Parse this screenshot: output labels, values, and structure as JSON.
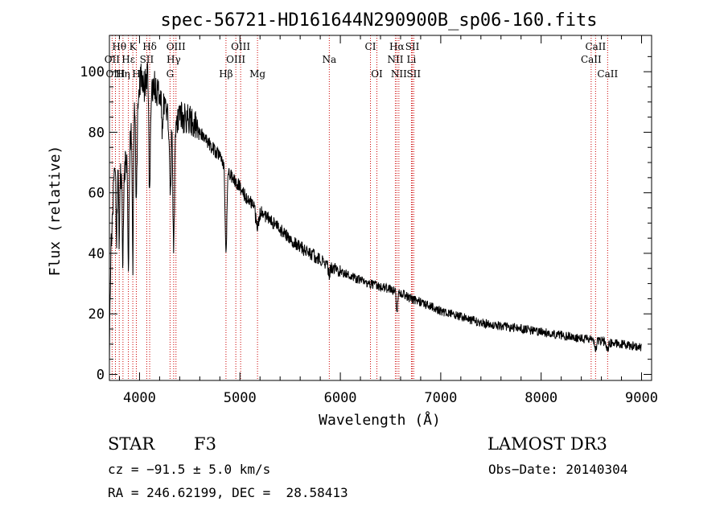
{
  "chart_data": {
    "type": "line",
    "title": "spec-56721-HD161644N290900B_sp06-160.fits",
    "xlabel": "Wavelength (Å)",
    "ylabel": "Flux (relative)",
    "xlim": [
      3700,
      9100
    ],
    "ylim": [
      -2,
      112
    ],
    "xticks": [
      4000,
      5000,
      6000,
      7000,
      8000,
      9000
    ],
    "yticks": [
      0,
      20,
      40,
      60,
      80,
      100
    ],
    "grid": false,
    "spectrum_anchors": [
      [
        3700,
        0
      ],
      [
        3705,
        25
      ],
      [
        3715,
        38
      ],
      [
        3730,
        55
      ],
      [
        3745,
        62
      ],
      [
        3760,
        72
      ],
      [
        3780,
        65
      ],
      [
        3800,
        70
      ],
      [
        3830,
        60
      ],
      [
        3850,
        68
      ],
      [
        3870,
        72
      ],
      [
        3890,
        65
      ],
      [
        3910,
        78
      ],
      [
        3930,
        85
      ],
      [
        3950,
        90
      ],
      [
        3970,
        88
      ],
      [
        4000,
        96
      ],
      [
        4020,
        98
      ],
      [
        4050,
        95
      ],
      [
        4080,
        100
      ],
      [
        4100,
        97
      ],
      [
        4130,
        94
      ],
      [
        4150,
        95
      ],
      [
        4200,
        92
      ],
      [
        4250,
        90
      ],
      [
        4280,
        87
      ],
      [
        4300,
        82
      ],
      [
        4320,
        86
      ],
      [
        4340,
        78
      ],
      [
        4360,
        83
      ],
      [
        4400,
        85
      ],
      [
        4450,
        85
      ],
      [
        4500,
        84
      ],
      [
        4550,
        83
      ],
      [
        4600,
        80
      ],
      [
        4650,
        78
      ],
      [
        4700,
        76
      ],
      [
        4750,
        74
      ],
      [
        4800,
        72
      ],
      [
        4850,
        68
      ],
      [
        4900,
        66
      ],
      [
        4950,
        64
      ],
      [
        5000,
        62
      ],
      [
        5050,
        59
      ],
      [
        5100,
        57
      ],
      [
        5200,
        54
      ],
      [
        5300,
        51
      ],
      [
        5400,
        48
      ],
      [
        5500,
        45
      ],
      [
        5600,
        42
      ],
      [
        5700,
        40
      ],
      [
        5800,
        38
      ],
      [
        5900,
        36
      ],
      [
        6000,
        34
      ],
      [
        6100,
        32.5
      ],
      [
        6200,
        31
      ],
      [
        6300,
        30
      ],
      [
        6400,
        29
      ],
      [
        6500,
        28
      ],
      [
        6600,
        27
      ],
      [
        6700,
        25
      ],
      [
        6800,
        24
      ],
      [
        6900,
        22.5
      ],
      [
        7000,
        21
      ],
      [
        7100,
        20
      ],
      [
        7200,
        19
      ],
      [
        7300,
        18
      ],
      [
        7400,
        17
      ],
      [
        7500,
        16.5
      ],
      [
        7600,
        16
      ],
      [
        7700,
        15.5
      ],
      [
        7800,
        15
      ],
      [
        7900,
        14.5
      ],
      [
        8000,
        14
      ],
      [
        8100,
        13.5
      ],
      [
        8200,
        13
      ],
      [
        8300,
        12.5
      ],
      [
        8400,
        12
      ],
      [
        8500,
        11.5
      ],
      [
        8600,
        11
      ],
      [
        8700,
        10.5
      ],
      [
        8800,
        10
      ],
      [
        8900,
        9.5
      ],
      [
        9000,
        9
      ]
    ],
    "absorption_features": [
      [
        3770,
        22,
        6
      ],
      [
        3798,
        26,
        5
      ],
      [
        3835,
        23,
        6
      ],
      [
        3889,
        28,
        6
      ],
      [
        3933,
        50,
        6
      ],
      [
        3968,
        35,
        6
      ],
      [
        4101,
        40,
        7
      ],
      [
        4227,
        12,
        6
      ],
      [
        4307,
        22,
        8
      ],
      [
        4340,
        38,
        8
      ],
      [
        4861,
        28,
        8
      ],
      [
        5172,
        6,
        15
      ],
      [
        5890,
        3,
        10
      ],
      [
        6563,
        8,
        6
      ],
      [
        8542,
        3,
        10
      ],
      [
        8662,
        2.5,
        10
      ]
    ],
    "spectral_lines": [
      {
        "label": "Hθ",
        "wavelength": 3798,
        "row": 1
      },
      {
        "label": "K",
        "wavelength": 3933,
        "row": 1
      },
      {
        "label": "Hδ",
        "wavelength": 4101,
        "row": 1
      },
      {
        "label": "OIII",
        "wavelength": 4363,
        "row": 1
      },
      {
        "label": "OIII",
        "wavelength": 5007,
        "row": 1
      },
      {
        "label": "CI",
        "wavelength": 6300,
        "row": 1
      },
      {
        "label": "Hα",
        "wavelength": 6563,
        "row": 1
      },
      {
        "label": "SII",
        "wavelength": 6717,
        "row": 1
      },
      {
        "label": "CaII",
        "wavelength": 8542,
        "row": 1
      },
      {
        "label": "OII",
        "wavelength": 3727,
        "row": 2
      },
      {
        "label": "Hε",
        "wavelength": 3889,
        "row": 2
      },
      {
        "label": "SII",
        "wavelength": 4072,
        "row": 2
      },
      {
        "label": "Hγ",
        "wavelength": 4340,
        "row": 2
      },
      {
        "label": "OIII",
        "wavelength": 4959,
        "row": 2
      },
      {
        "label": "Na",
        "wavelength": 5890,
        "row": 2
      },
      {
        "label": "NII",
        "wavelength": 6548,
        "row": 2
      },
      {
        "label": "Li",
        "wavelength": 6708,
        "row": 2
      },
      {
        "label": "CaII",
        "wavelength": 8498,
        "row": 2
      },
      {
        "label": "OIII",
        "wavelength": 3760,
        "row": 3
      },
      {
        "label": "Hη",
        "wavelength": 3835,
        "row": 3
      },
      {
        "label": "H",
        "wavelength": 3968,
        "row": 3
      },
      {
        "label": "G",
        "wavelength": 4304,
        "row": 3
      },
      {
        "label": "Hβ",
        "wavelength": 4861,
        "row": 3
      },
      {
        "label": "Mg",
        "wavelength": 5175,
        "row": 3
      },
      {
        "label": "OI",
        "wavelength": 6364,
        "row": 3
      },
      {
        "label": "NII",
        "wavelength": 6583,
        "row": 3
      },
      {
        "label": "SII",
        "wavelength": 6731,
        "row": 3
      },
      {
        "label": "CaII",
        "wavelength": 8662,
        "row": 3
      }
    ]
  },
  "info": {
    "object_class": "STAR",
    "subclass": "F3",
    "survey": "LAMOST DR3",
    "redshift": "cz = −91.5 ± 5.0 km/s",
    "obs_date": "Obs−Date: 20140304",
    "coords": "RA = 246.62199, DEC =  28.58413"
  },
  "colors": {
    "line_marker": "#cc0000",
    "spectrum": "#000000",
    "axes": "#000000",
    "background": "#ffffff"
  }
}
